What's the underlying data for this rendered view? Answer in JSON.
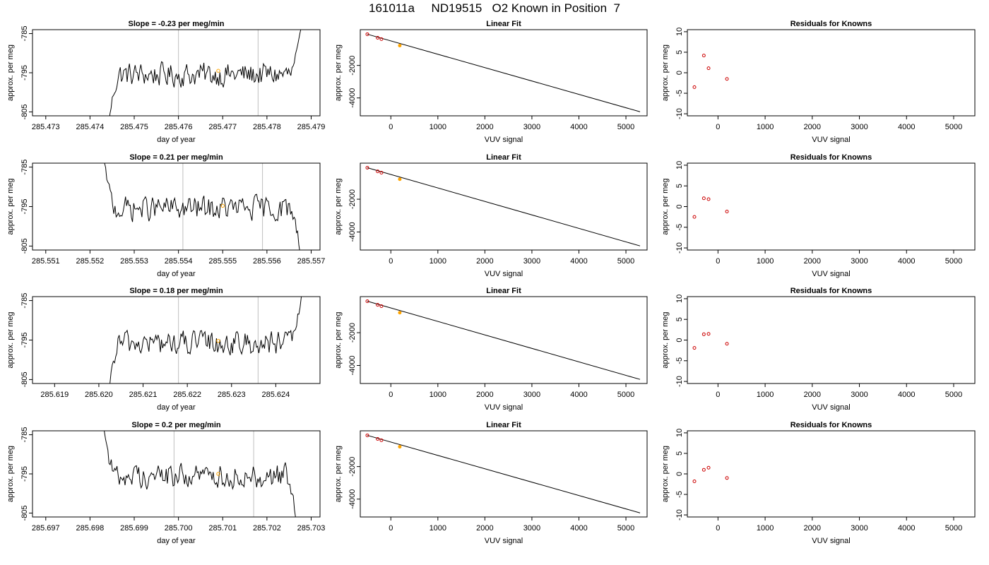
{
  "title": "161011a     ND19515   O2 Known in Position  7",
  "colors": {
    "trace": "#000000",
    "vline": "#bfbfbf",
    "known": "#ffa500",
    "resid": "#cc0000",
    "fitpt": "#cc0000"
  },
  "chart_data": [
    {
      "type": "line",
      "title": "Slope =  -0.23  per meg/min",
      "xlabel": "day of year",
      "ylabel": "approx. per meg",
      "xlim": [
        285.4727,
        285.4792
      ],
      "ylim": [
        -806,
        -784
      ],
      "xticks": [
        "285.473",
        "285.474",
        "285.475",
        "285.476",
        "285.477",
        "285.478",
        "285.479"
      ],
      "yticks": [
        "-785",
        "-795",
        "-805"
      ],
      "vlines": [
        285.476,
        285.4778
      ],
      "known_point": {
        "x": 285.4769,
        "y": -794.5
      },
      "start": 285.4744,
      "end": 285.4788,
      "mean": -795.5,
      "rise_start": -810,
      "rise_end": -782
    },
    {
      "type": "scatter",
      "title": "Linear Fit",
      "xlabel": "VUV signal",
      "ylabel": "approx. per meg",
      "xlim": [
        -650,
        5450
      ],
      "ylim": [
        -5100,
        200
      ],
      "xticks": [
        "0",
        "1000",
        "2000",
        "3000",
        "4000",
        "5000"
      ],
      "yticks": [
        "-2000",
        "-4000"
      ],
      "points": [
        [
          -500,
          -80
        ],
        [
          -280,
          -300
        ],
        [
          -200,
          -380
        ],
        [
          190,
          -780
        ]
      ],
      "fit_line": [
        [
          -500,
          -80
        ],
        [
          5300,
          -4850
        ]
      ]
    },
    {
      "type": "scatter",
      "title": "Residuals for Knowns",
      "xlabel": "VUV signal",
      "ylabel": "approx. per meg",
      "xlim": [
        -650,
        5450
      ],
      "ylim": [
        -10.5,
        10.5
      ],
      "xticks": [
        "0",
        "1000",
        "2000",
        "3000",
        "4000",
        "5000"
      ],
      "yticks": [
        "10",
        "5",
        "0",
        "-5",
        "-10"
      ],
      "points": [
        [
          -500,
          -3.5
        ],
        [
          -300,
          4.2
        ],
        [
          -200,
          1.1
        ],
        [
          190,
          -1.5
        ]
      ]
    },
    {
      "type": "line",
      "title": "Slope =  0.21  per meg/min",
      "xlabel": "day of year",
      "ylabel": "approx. per meg",
      "xlim": [
        285.5507,
        285.5572
      ],
      "ylim": [
        -806,
        -784
      ],
      "xticks": [
        "285.551",
        "285.552",
        "285.553",
        "285.554",
        "285.555",
        "285.556",
        "285.557"
      ],
      "yticks": [
        "-785",
        "-795",
        "-805"
      ],
      "vlines": [
        285.5541,
        285.5559
      ],
      "known_point": {
        "x": 285.555,
        "y": -794.8
      },
      "start": 285.5523,
      "end": 285.5568,
      "mean": -795.5,
      "rise_start": -782,
      "rise_end": -810
    },
    {
      "type": "scatter",
      "title": "Linear Fit",
      "xlabel": "VUV signal",
      "ylabel": "approx. per meg",
      "xlim": [
        -650,
        5450
      ],
      "ylim": [
        -5100,
        200
      ],
      "xticks": [
        "0",
        "1000",
        "2000",
        "3000",
        "4000",
        "5000"
      ],
      "yticks": [
        "-2000",
        "-4000"
      ],
      "points": [
        [
          -500,
          -80
        ],
        [
          -280,
          -300
        ],
        [
          -200,
          -380
        ],
        [
          190,
          -780
        ]
      ],
      "fit_line": [
        [
          -500,
          -80
        ],
        [
          5300,
          -4850
        ]
      ]
    },
    {
      "type": "scatter",
      "title": "Residuals for Knowns",
      "xlabel": "VUV signal",
      "ylabel": "approx. per meg",
      "xlim": [
        -650,
        5450
      ],
      "ylim": [
        -10.5,
        10.5
      ],
      "xticks": [
        "0",
        "1000",
        "2000",
        "3000",
        "4000",
        "5000"
      ],
      "yticks": [
        "10",
        "5",
        "0",
        "-5",
        "-10"
      ],
      "points": [
        [
          -500,
          -2.5
        ],
        [
          -300,
          2.0
        ],
        [
          -200,
          1.8
        ],
        [
          190,
          -1.2
        ]
      ]
    },
    {
      "type": "line",
      "title": "Slope =  0.18  per meg/min",
      "xlabel": "day of year",
      "ylabel": "approx. per meg",
      "xlim": [
        285.6185,
        285.625
      ],
      "ylim": [
        -806,
        -784
      ],
      "xticks": [
        "285.619",
        "285.620",
        "285.621",
        "285.622",
        "285.623",
        "285.624"
      ],
      "yticks": [
        "-785",
        "-795",
        "-805"
      ],
      "vlines": [
        285.6218,
        285.6236
      ],
      "known_point": {
        "x": 285.6227,
        "y": -795.2
      },
      "start": 285.6202,
      "end": 285.6246,
      "mean": -795.8,
      "rise_start": -810,
      "rise_end": -782
    },
    {
      "type": "scatter",
      "title": "Linear Fit",
      "xlabel": "VUV signal",
      "ylabel": "approx. per meg",
      "xlim": [
        -650,
        5450
      ],
      "ylim": [
        -5100,
        200
      ],
      "xticks": [
        "0",
        "1000",
        "2000",
        "3000",
        "4000",
        "5000"
      ],
      "yticks": [
        "-2000",
        "-4000"
      ],
      "points": [
        [
          -500,
          -80
        ],
        [
          -280,
          -300
        ],
        [
          -200,
          -380
        ],
        [
          190,
          -780
        ]
      ],
      "fit_line": [
        [
          -500,
          -80
        ],
        [
          5300,
          -4850
        ]
      ]
    },
    {
      "type": "scatter",
      "title": "Residuals for Knowns",
      "xlabel": "VUV signal",
      "ylabel": "approx. per meg",
      "xlim": [
        -650,
        5450
      ],
      "ylim": [
        -10.5,
        10.5
      ],
      "xticks": [
        "0",
        "1000",
        "2000",
        "3000",
        "4000",
        "5000"
      ],
      "yticks": [
        "10",
        "5",
        "0",
        "-5",
        "-10"
      ],
      "points": [
        [
          -500,
          -1.9
        ],
        [
          -300,
          1.4
        ],
        [
          -200,
          1.5
        ],
        [
          190,
          -0.9
        ]
      ]
    },
    {
      "type": "line",
      "title": "Slope =  0.2  per meg/min",
      "xlabel": "day of year",
      "ylabel": "approx. per meg",
      "xlim": [
        285.6967,
        285.7032
      ],
      "ylim": [
        -806,
        -784
      ],
      "xticks": [
        "285.697",
        "285.698",
        "285.699",
        "285.700",
        "285.701",
        "285.702",
        "285.703"
      ],
      "yticks": [
        "-785",
        "-795",
        "-805"
      ],
      "vlines": [
        285.6999,
        285.7017
      ],
      "known_point": {
        "x": 285.7009,
        "y": -795.0
      },
      "start": 285.6983,
      "end": 285.7027,
      "mean": -795.5,
      "rise_start": -782,
      "rise_end": -810
    },
    {
      "type": "scatter",
      "title": "Linear Fit",
      "xlabel": "VUV signal",
      "ylabel": "approx. per meg",
      "xlim": [
        -650,
        5450
      ],
      "ylim": [
        -5100,
        200
      ],
      "xticks": [
        "0",
        "1000",
        "2000",
        "3000",
        "4000",
        "5000"
      ],
      "yticks": [
        "-2000",
        "-4000"
      ],
      "points": [
        [
          -500,
          -80
        ],
        [
          -280,
          -300
        ],
        [
          -200,
          -380
        ],
        [
          190,
          -780
        ]
      ],
      "fit_line": [
        [
          -500,
          -80
        ],
        [
          5300,
          -4850
        ]
      ]
    },
    {
      "type": "scatter",
      "title": "Residuals for Knowns",
      "xlabel": "VUV signal",
      "ylabel": "approx. per meg",
      "xlim": [
        -650,
        5450
      ],
      "ylim": [
        -10.5,
        10.5
      ],
      "xticks": [
        "0",
        "1000",
        "2000",
        "3000",
        "4000",
        "5000"
      ],
      "yticks": [
        "10",
        "5",
        "0",
        "-5",
        "-10"
      ],
      "points": [
        [
          -500,
          -1.8
        ],
        [
          -300,
          1.0
        ],
        [
          -200,
          1.5
        ],
        [
          190,
          -1.0
        ]
      ]
    }
  ]
}
